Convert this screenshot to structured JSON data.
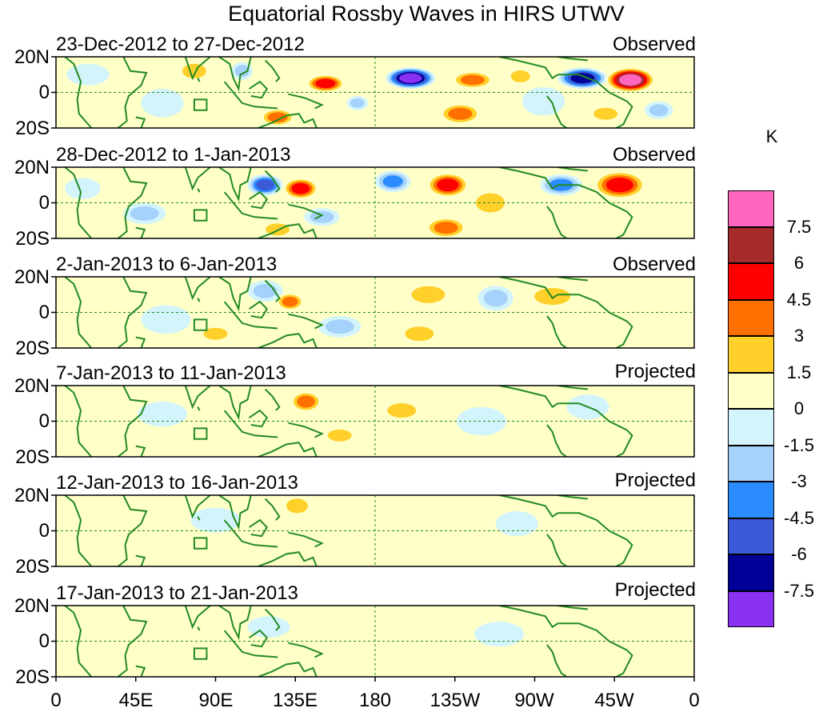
{
  "title": "Equatorial Rossby Waves in HIRS UTWV",
  "colorbar": {
    "unit": "K",
    "colors": [
      "#ff66c0",
      "#a52a2a",
      "#ff0000",
      "#ff7000",
      "#ffd02a",
      "#ffffc8",
      "#d4f4fb",
      "#a4d2fa",
      "#2a8cff",
      "#3c5ad7",
      "#000096",
      "#8a30f0"
    ],
    "tick_labels": [
      "7.5",
      "6",
      "4.5",
      "3",
      "1.5",
      "0",
      "-1.5",
      "-3",
      "-4.5",
      "-6",
      "-7.5"
    ]
  },
  "axes": {
    "lat_labels": [
      "20N",
      "0",
      "20S"
    ],
    "lon_labels": [
      "0",
      "45E",
      "90E",
      "135E",
      "180",
      "135W",
      "90W",
      "45W",
      "0"
    ]
  },
  "panels": [
    {
      "date_range": "23-Dec-2012 to 27-Dec-2012",
      "status": "Observed",
      "anomalies": [
        {
          "lon": 200,
          "lat": 8,
          "rx": 14,
          "ry": 6,
          "v": -8
        },
        {
          "lon": 297,
          "lat": 8,
          "rx": 14,
          "ry": 6,
          "v": -7
        },
        {
          "lon": 324,
          "lat": 7,
          "rx": 14,
          "ry": 7,
          "v": 8
        },
        {
          "lon": 152,
          "lat": 5,
          "rx": 11,
          "ry": 5,
          "v": 5
        },
        {
          "lon": 235,
          "lat": 7,
          "rx": 12,
          "ry": 5,
          "v": 4
        },
        {
          "lon": 262,
          "lat": 9,
          "rx": 8,
          "ry": 5,
          "v": 3
        },
        {
          "lon": 125,
          "lat": -14,
          "rx": 10,
          "ry": 5,
          "v": 4
        },
        {
          "lon": 228,
          "lat": -12,
          "rx": 12,
          "ry": 6,
          "v": 4
        },
        {
          "lon": 310,
          "lat": -12,
          "rx": 10,
          "ry": 5,
          "v": 3
        },
        {
          "lon": 340,
          "lat": -10,
          "rx": 8,
          "ry": 5,
          "v": -3
        },
        {
          "lon": 40,
          "lat": -8,
          "rx": 6,
          "ry": 5,
          "v": 1
        },
        {
          "lon": 78,
          "lat": 12,
          "rx": 10,
          "ry": 6,
          "v": 2
        },
        {
          "lon": 60,
          "lat": -6,
          "rx": 12,
          "ry": 8,
          "v": -1
        },
        {
          "lon": 105,
          "lat": 12,
          "rx": 6,
          "ry": 5,
          "v": -3
        },
        {
          "lon": 170,
          "lat": -6,
          "rx": 6,
          "ry": 4,
          "v": -3
        },
        {
          "lon": 185,
          "lat": -2,
          "rx": 15,
          "ry": 10,
          "v": 1
        },
        {
          "lon": 275,
          "lat": -5,
          "rx": 12,
          "ry": 8,
          "v": -1
        },
        {
          "lon": 18,
          "lat": 10,
          "rx": 12,
          "ry": 6,
          "v": -1
        }
      ]
    },
    {
      "date_range": "28-Dec-2012 to 1-Jan-2013",
      "status": "Observed",
      "anomalies": [
        {
          "lon": 138,
          "lat": 8,
          "rx": 10,
          "ry": 6,
          "v": 5
        },
        {
          "lon": 221,
          "lat": 10,
          "rx": 12,
          "ry": 7,
          "v": 5
        },
        {
          "lon": 318,
          "lat": 10,
          "rx": 15,
          "ry": 8,
          "v": 6
        },
        {
          "lon": 220,
          "lat": -14,
          "rx": 12,
          "ry": 6,
          "v": 4
        },
        {
          "lon": 125,
          "lat": -15,
          "rx": 10,
          "ry": 5,
          "v": 3
        },
        {
          "lon": 118,
          "lat": 10,
          "rx": 10,
          "ry": 6,
          "v": -5
        },
        {
          "lon": 190,
          "lat": 12,
          "rx": 10,
          "ry": 6,
          "v": -4
        },
        {
          "lon": 285,
          "lat": 10,
          "rx": 12,
          "ry": 6,
          "v": -4
        },
        {
          "lon": 150,
          "lat": -8,
          "rx": 10,
          "ry": 5,
          "v": -3
        },
        {
          "lon": 50,
          "lat": -6,
          "rx": 12,
          "ry": 6,
          "v": -2
        },
        {
          "lon": 80,
          "lat": 14,
          "rx": 8,
          "ry": 5,
          "v": 1
        },
        {
          "lon": 245,
          "lat": 0,
          "rx": 12,
          "ry": 8,
          "v": 2
        },
        {
          "lon": 300,
          "lat": -10,
          "rx": 10,
          "ry": 6,
          "v": 1
        },
        {
          "lon": 15,
          "lat": 8,
          "rx": 10,
          "ry": 6,
          "v": -1
        }
      ]
    },
    {
      "date_range": "2-Jan-2013 to 6-Jan-2013",
      "status": "Observed",
      "anomalies": [
        {
          "lon": 132,
          "lat": 6,
          "rx": 8,
          "ry": 5,
          "v": 4
        },
        {
          "lon": 210,
          "lat": 10,
          "rx": 14,
          "ry": 7,
          "v": 3
        },
        {
          "lon": 280,
          "lat": 9,
          "rx": 15,
          "ry": 7,
          "v": 3
        },
        {
          "lon": 205,
          "lat": -12,
          "rx": 12,
          "ry": 6,
          "v": 2
        },
        {
          "lon": 118,
          "lat": 12,
          "rx": 10,
          "ry": 6,
          "v": -2
        },
        {
          "lon": 248,
          "lat": 8,
          "rx": 10,
          "ry": 7,
          "v": -2
        },
        {
          "lon": 160,
          "lat": -8,
          "rx": 12,
          "ry": 6,
          "v": -2
        },
        {
          "lon": 62,
          "lat": -4,
          "rx": 14,
          "ry": 8,
          "v": -1
        },
        {
          "lon": 90,
          "lat": -12,
          "rx": 10,
          "ry": 5,
          "v": 2
        },
        {
          "lon": 30,
          "lat": -8,
          "rx": 10,
          "ry": 6,
          "v": 1
        },
        {
          "lon": 320,
          "lat": -8,
          "rx": 12,
          "ry": 6,
          "v": 1
        }
      ]
    },
    {
      "date_range": "7-Jan-2013 to 11-Jan-2013",
      "status": "Projected",
      "anomalies": [
        {
          "lon": 141,
          "lat": 11,
          "rx": 9,
          "ry": 6,
          "v": 4
        },
        {
          "lon": 195,
          "lat": 6,
          "rx": 12,
          "ry": 6,
          "v": 2
        },
        {
          "lon": 160,
          "lat": -8,
          "rx": 10,
          "ry": 5,
          "v": 2
        },
        {
          "lon": 110,
          "lat": -6,
          "rx": 10,
          "ry": 6,
          "v": 1
        },
        {
          "lon": 60,
          "lat": 4,
          "rx": 14,
          "ry": 7,
          "v": -1
        },
        {
          "lon": 240,
          "lat": 0,
          "rx": 14,
          "ry": 8,
          "v": -1
        },
        {
          "lon": 300,
          "lat": 8,
          "rx": 12,
          "ry": 7,
          "v": -1
        },
        {
          "lon": 25,
          "lat": -8,
          "rx": 10,
          "ry": 6,
          "v": 1
        }
      ]
    },
    {
      "date_range": "12-Jan-2013 to 16-Jan-2013",
      "status": "Projected",
      "anomalies": [
        {
          "lon": 136,
          "lat": 14,
          "rx": 9,
          "ry": 6,
          "v": 3
        },
        {
          "lon": 145,
          "lat": -6,
          "rx": 10,
          "ry": 5,
          "v": 1
        },
        {
          "lon": 90,
          "lat": 6,
          "rx": 14,
          "ry": 7,
          "v": -1
        },
        {
          "lon": 200,
          "lat": -4,
          "rx": 15,
          "ry": 8,
          "v": 1
        },
        {
          "lon": 260,
          "lat": 4,
          "rx": 12,
          "ry": 7,
          "v": -1
        },
        {
          "lon": 300,
          "lat": 6,
          "rx": 10,
          "ry": 6,
          "v": 1
        },
        {
          "lon": 30,
          "lat": -6,
          "rx": 10,
          "ry": 6,
          "v": 1
        }
      ]
    },
    {
      "date_range": "17-Jan-2013 to 21-Jan-2013",
      "status": "Projected",
      "anomalies": [
        {
          "lon": 50,
          "lat": -6,
          "rx": 12,
          "ry": 7,
          "v": 1
        },
        {
          "lon": 120,
          "lat": 8,
          "rx": 12,
          "ry": 6,
          "v": -1
        },
        {
          "lon": 190,
          "lat": 0,
          "rx": 14,
          "ry": 8,
          "v": 1
        },
        {
          "lon": 250,
          "lat": 4,
          "rx": 14,
          "ry": 7,
          "v": -1
        },
        {
          "lon": 310,
          "lat": -4,
          "rx": 12,
          "ry": 7,
          "v": 1
        }
      ]
    }
  ]
}
